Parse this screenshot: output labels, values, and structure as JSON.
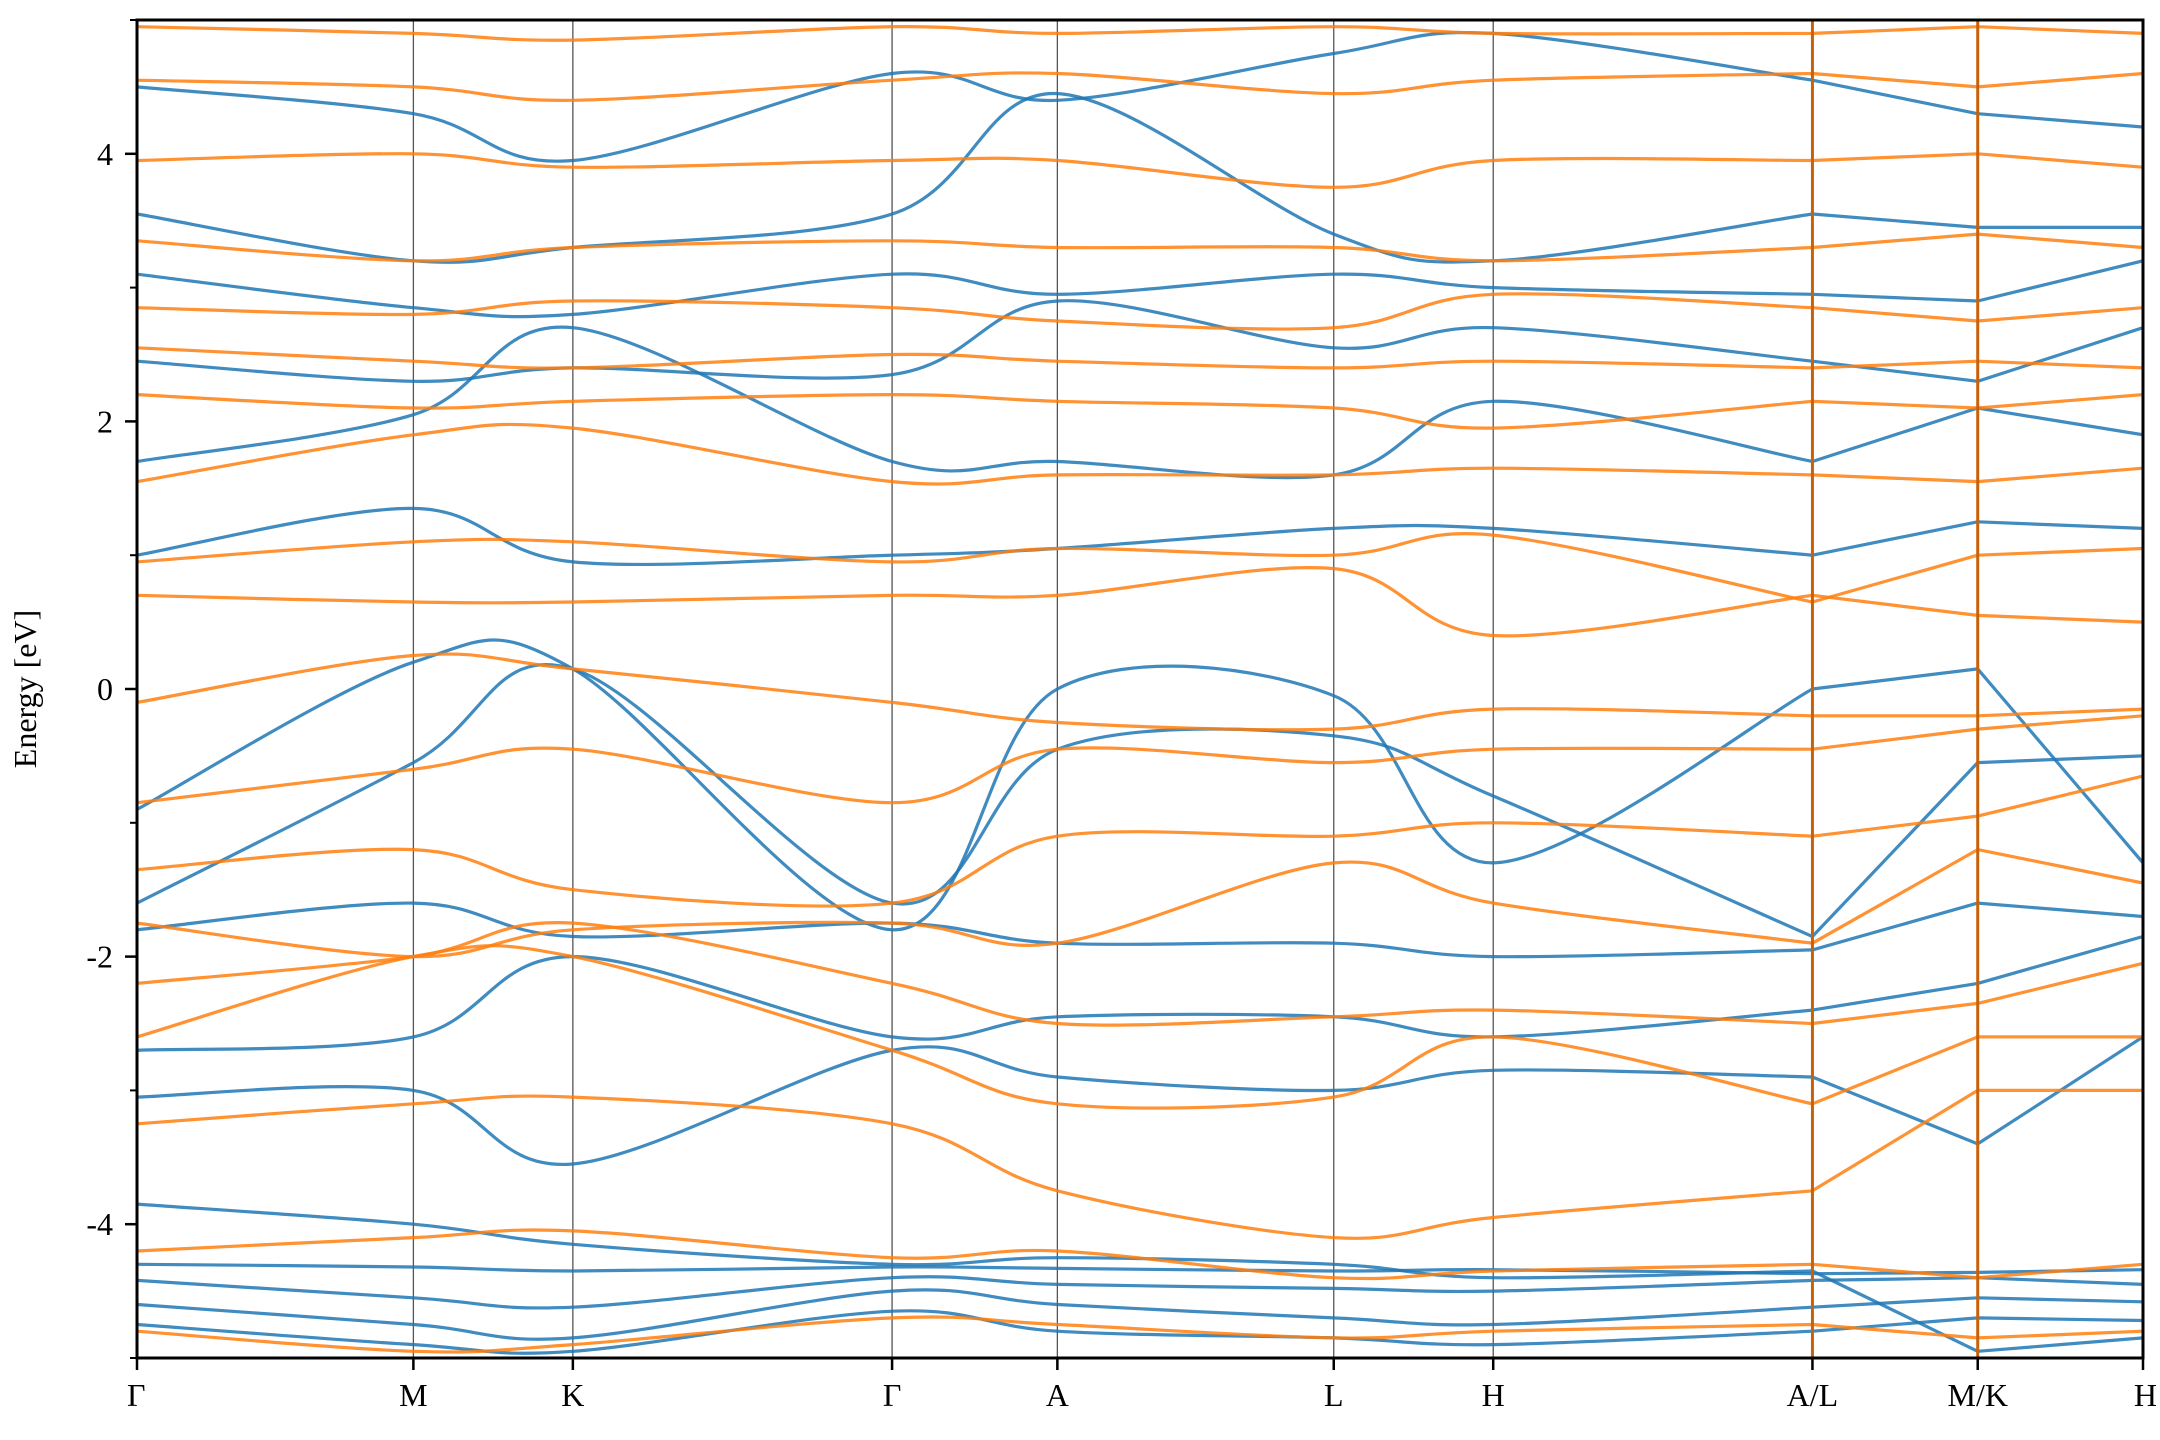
{
  "chart_data": {
    "type": "line",
    "title": "",
    "xlabel": "",
    "ylabel": "Energy [eV]",
    "ylim": [
      -5,
      5
    ],
    "yticks": [
      -4,
      -2,
      0,
      2,
      4
    ],
    "yticklabels": [
      "-4",
      "-2",
      "0",
      "2",
      "4"
    ],
    "y_minor_ticks": [
      -5,
      -3,
      -1,
      1,
      3,
      5
    ],
    "grid": "vertical lines at high-symmetry points",
    "legend": "none",
    "kpath_segments": [
      {
        "from": "Γ",
        "to": "M",
        "start": 0.0,
        "end": 1.0
      },
      {
        "from": "M",
        "to": "K",
        "start": 1.0,
        "end": 1.577
      },
      {
        "from": "K",
        "to": "Γ",
        "start": 1.577,
        "end": 2.732
      },
      {
        "from": "Γ",
        "to": "A",
        "start": 2.732,
        "end": 3.33
      },
      {
        "from": "A",
        "to": "L",
        "start": 3.33,
        "end": 4.33
      },
      {
        "from": "L",
        "to": "H",
        "start": 4.33,
        "end": 4.907
      },
      {
        "from": "H",
        "to": "A",
        "start": 4.907,
        "end": 6.062
      },
      {
        "from": "L",
        "to": "M",
        "start": 6.062,
        "end": 6.66
      },
      {
        "from": "K",
        "to": "H",
        "start": 6.66,
        "end": 7.258
      }
    ],
    "xticks": [
      0.0,
      1.0,
      1.577,
      2.732,
      3.33,
      4.33,
      4.907,
      6.062,
      6.66,
      7.258
    ],
    "xticklabels": [
      "Γ",
      "M",
      "K",
      "Γ",
      "A",
      "L",
      "H",
      "A/L",
      "M/K",
      "H"
    ],
    "path_breaks": [
      6.062,
      6.66
    ],
    "colors": {
      "spin_up": "#1f77b4",
      "spin_down": "#ff7f0e",
      "axis": "#000000",
      "kline": "#555555"
    },
    "series": [
      {
        "color": "#1f77b4",
        "bands": [
          [
            -4.3,
            -4.32,
            -4.35,
            -4.32,
            -4.33,
            -4.35,
            -4.34,
            -4.37,
            -4.36,
            -4.34
          ],
          [
            -4.42,
            -4.55,
            -4.62,
            -4.4,
            -4.45,
            -4.48,
            -4.5,
            -4.42,
            -4.4,
            -4.45
          ],
          [
            -4.6,
            -4.75,
            -4.85,
            -4.5,
            -4.6,
            -4.7,
            -4.75,
            -4.62,
            -4.55,
            -4.58
          ],
          [
            -4.75,
            -4.9,
            -4.95,
            -4.65,
            -4.8,
            -4.85,
            -4.9,
            -4.8,
            -4.7,
            -4.72
          ],
          [
            -3.85,
            -4.0,
            -4.15,
            -4.3,
            -4.25,
            -4.3,
            -4.4,
            -4.35,
            -4.95,
            -4.85
          ],
          [
            -3.05,
            -3.0,
            -3.55,
            -2.7,
            -2.9,
            -3.0,
            -2.85,
            -2.9,
            -3.4,
            -2.6
          ],
          [
            -2.7,
            -2.6,
            -2.0,
            -2.6,
            -2.45,
            -2.45,
            -2.6,
            -2.4,
            -2.2,
            -1.85
          ],
          [
            -1.8,
            -1.6,
            -1.85,
            -1.75,
            -1.9,
            -1.9,
            -2.0,
            -1.95,
            -1.6,
            -1.7
          ],
          [
            -1.6,
            -0.55,
            0.15,
            -1.6,
            -0.45,
            -0.35,
            -0.8,
            -1.85,
            -0.55,
            -0.5
          ],
          [
            -0.9,
            0.2,
            0.15,
            -1.8,
            0.0,
            -0.05,
            -1.3,
            0.0,
            0.15,
            -1.3
          ],
          [
            1.0,
            1.35,
            0.95,
            1.0,
            1.05,
            1.2,
            1.2,
            1.0,
            1.25,
            1.2
          ],
          [
            1.7,
            2.05,
            2.7,
            1.7,
            1.7,
            1.6,
            2.15,
            1.7,
            2.1,
            1.9
          ],
          [
            2.45,
            2.3,
            2.4,
            2.35,
            2.9,
            2.55,
            2.7,
            2.45,
            2.3,
            2.7
          ],
          [
            3.1,
            2.85,
            2.8,
            3.1,
            2.95,
            3.1,
            3.0,
            2.95,
            2.9,
            3.2
          ],
          [
            3.55,
            3.2,
            3.3,
            3.55,
            4.45,
            3.4,
            3.2,
            3.55,
            3.45,
            3.45
          ],
          [
            4.5,
            4.3,
            3.95,
            4.6,
            4.4,
            4.75,
            4.9,
            4.55,
            4.3,
            4.2
          ]
        ]
      },
      {
        "color": "#ff7f0e",
        "bands": [
          [
            -4.8,
            -4.95,
            -4.9,
            -4.7,
            -4.75,
            -4.85,
            -4.8,
            -4.75,
            -4.85,
            -4.8
          ],
          [
            -4.2,
            -4.1,
            -4.05,
            -4.25,
            -4.2,
            -4.4,
            -4.35,
            -4.3,
            -4.4,
            -4.3
          ],
          [
            -3.25,
            -3.1,
            -3.05,
            -3.25,
            -3.75,
            -4.1,
            -3.95,
            -3.75,
            -3.0,
            -3.0
          ],
          [
            -2.6,
            -2.0,
            -2.0,
            -2.7,
            -3.1,
            -3.05,
            -2.6,
            -3.1,
            -2.6,
            -2.6
          ],
          [
            -2.2,
            -2.0,
            -1.75,
            -2.2,
            -2.5,
            -2.45,
            -2.4,
            -2.5,
            -2.35,
            -2.05
          ],
          [
            -1.75,
            -2.0,
            -1.8,
            -1.75,
            -1.9,
            -1.3,
            -1.6,
            -1.9,
            -1.2,
            -1.45
          ],
          [
            -1.35,
            -1.2,
            -1.5,
            -1.6,
            -1.1,
            -1.1,
            -1.0,
            -1.1,
            -0.95,
            -0.65
          ],
          [
            -0.85,
            -0.6,
            -0.45,
            -0.85,
            -0.45,
            -0.55,
            -0.45,
            -0.45,
            -0.3,
            -0.2
          ],
          [
            -0.1,
            0.25,
            0.15,
            -0.1,
            -0.25,
            -0.3,
            -0.15,
            -0.2,
            -0.2,
            -0.15
          ],
          [
            0.7,
            0.65,
            0.65,
            0.7,
            0.7,
            0.9,
            0.4,
            0.7,
            0.55,
            0.5
          ],
          [
            0.95,
            1.1,
            1.1,
            0.95,
            1.05,
            1.0,
            1.15,
            0.65,
            1.0,
            1.05
          ],
          [
            1.55,
            1.9,
            1.95,
            1.55,
            1.6,
            1.6,
            1.65,
            1.6,
            1.55,
            1.65
          ],
          [
            2.2,
            2.1,
            2.15,
            2.2,
            2.15,
            2.1,
            1.95,
            2.15,
            2.1,
            2.2
          ],
          [
            2.55,
            2.45,
            2.4,
            2.5,
            2.45,
            2.4,
            2.45,
            2.4,
            2.45,
            2.4
          ],
          [
            2.85,
            2.8,
            2.9,
            2.85,
            2.75,
            2.7,
            2.95,
            2.85,
            2.75,
            2.85
          ],
          [
            3.35,
            3.2,
            3.3,
            3.35,
            3.3,
            3.3,
            3.2,
            3.3,
            3.4,
            3.3
          ],
          [
            3.95,
            4.0,
            3.9,
            3.95,
            3.95,
            3.75,
            3.95,
            3.95,
            4.0,
            3.9
          ],
          [
            4.55,
            4.5,
            4.4,
            4.55,
            4.6,
            4.45,
            4.55,
            4.6,
            4.5,
            4.6
          ],
          [
            4.95,
            4.9,
            4.85,
            4.95,
            4.9,
            4.95,
            4.9,
            4.9,
            4.95,
            4.9
          ]
        ]
      }
    ]
  }
}
